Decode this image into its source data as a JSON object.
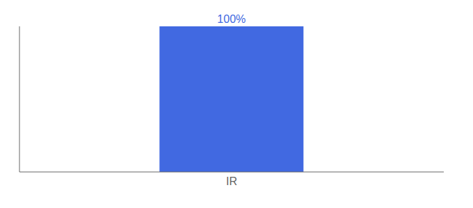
{
  "chart_data": {
    "type": "bar",
    "categories": [
      "IR"
    ],
    "values": [
      100
    ],
    "value_labels": [
      "100%"
    ],
    "data_labels": true,
    "color": "#4169e1",
    "ylim": [
      0,
      100
    ],
    "tick_labels": "x"
  }
}
